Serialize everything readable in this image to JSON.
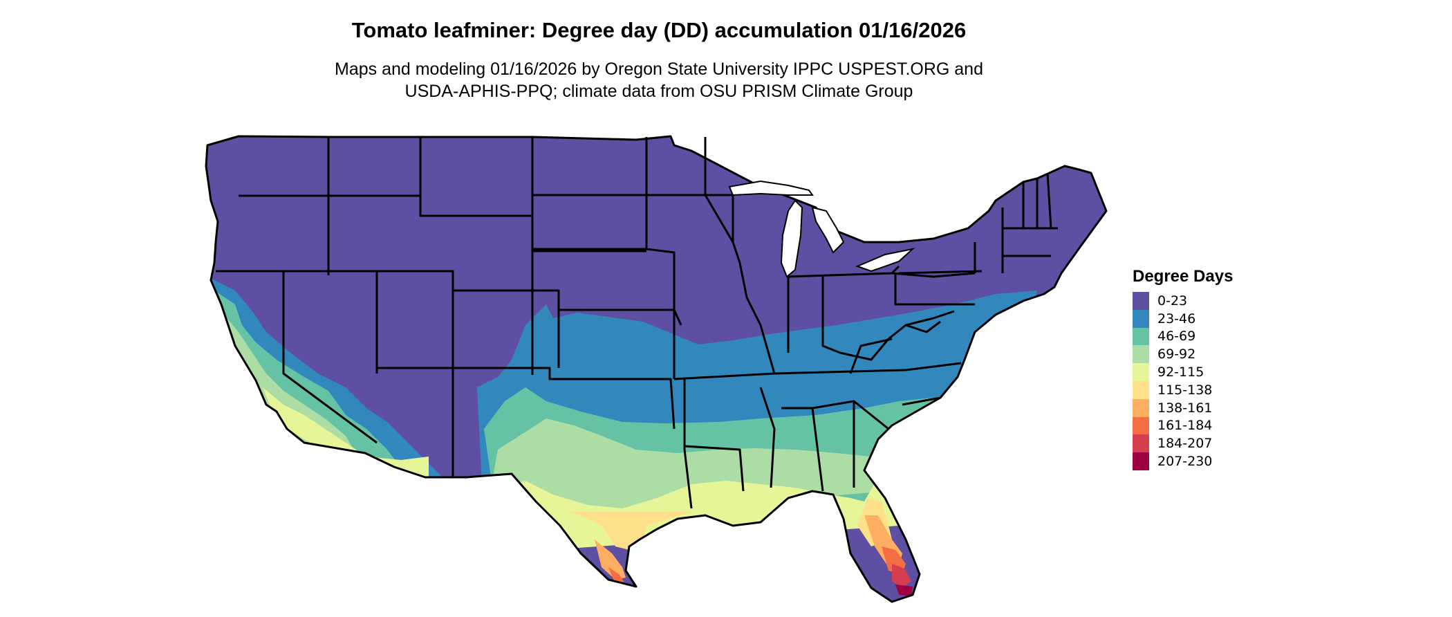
{
  "title": "Tomato leafminer: Degree day (DD) accumulation 01/16/2026",
  "subtitle_line1": "Maps and modeling 01/16/2026 by Oregon State University IPPC USPEST.ORG and",
  "subtitle_line2": "USDA-APHIS-PPQ; climate data from OSU PRISM Climate Group",
  "legend": {
    "title": "Degree Days",
    "items": [
      {
        "label": "0-23",
        "color": "#5E4FA2"
      },
      {
        "label": "23-46",
        "color": "#3288BD"
      },
      {
        "label": "46-69",
        "color": "#66C2A5"
      },
      {
        "label": "69-92",
        "color": "#ABDDA4"
      },
      {
        "label": "92-115",
        "color": "#E6F598"
      },
      {
        "label": "115-138",
        "color": "#FEE08B"
      },
      {
        "label": "138-161",
        "color": "#FDAE61"
      },
      {
        "label": "161-184",
        "color": "#F46D43"
      },
      {
        "label": "184-207",
        "color": "#D53E4F"
      },
      {
        "label": "207-230",
        "color": "#9E0142"
      }
    ]
  }
}
